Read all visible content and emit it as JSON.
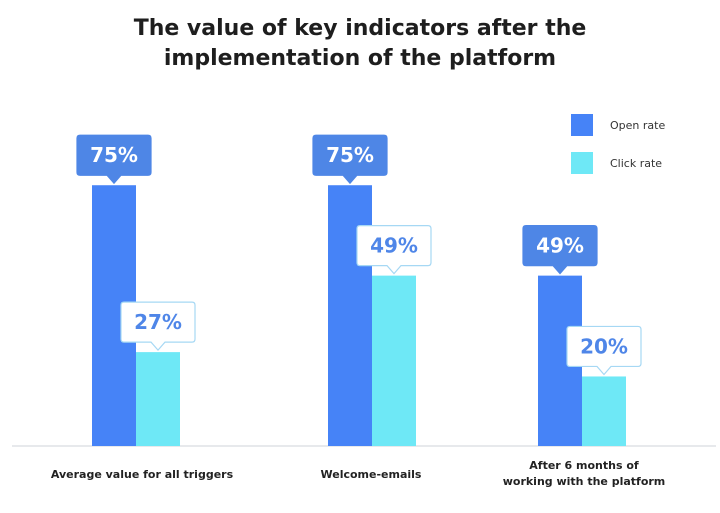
{
  "chart_data": {
    "type": "bar",
    "title_lines": [
      "The value of key indicators after the",
      "implementation of the platform"
    ],
    "categories": [
      [
        "Average value for all triggers"
      ],
      [
        "Welcome-emails"
      ],
      [
        "After 6 months of",
        "working with the platform"
      ]
    ],
    "series": [
      {
        "name": "Open rate",
        "color": "#4683f7",
        "values": [
          75,
          75,
          49
        ],
        "labels": [
          "75%",
          "75%",
          "49%"
        ]
      },
      {
        "name": "Click rate",
        "color": "#6ee8f6",
        "values": [
          27,
          49,
          20
        ],
        "labels": [
          "27%",
          "49%",
          "20%"
        ]
      }
    ],
    "ylim": [
      0,
      100
    ],
    "unit": "%",
    "legend": "top-right",
    "grid": false
  }
}
